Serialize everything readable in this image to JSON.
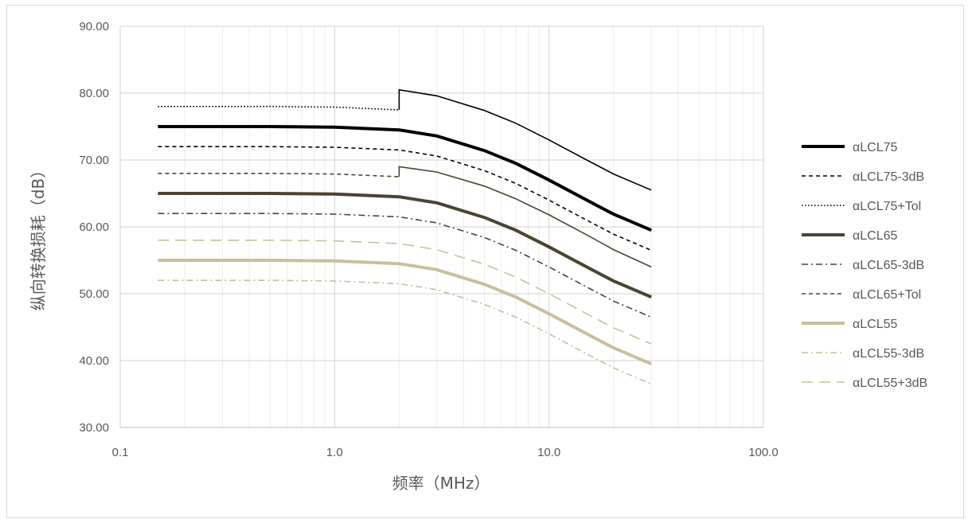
{
  "chart_data": {
    "type": "line",
    "xlabel": "频率（MHz）",
    "ylabel": "纵向转换损耗（dB）",
    "xscale": "log",
    "xlim": [
      0.1,
      100
    ],
    "ylim": [
      30,
      90
    ],
    "xticks": [
      "0.1",
      "1.0",
      "10.0",
      "100.0"
    ],
    "yticks": [
      "30.00",
      "40.00",
      "50.00",
      "60.00",
      "70.00",
      "80.00",
      "90.00"
    ],
    "grid": true,
    "legend_position": "right",
    "series": [
      {
        "name": "αLCL75",
        "color": "#000000",
        "style": "solid-thick",
        "x": [
          0.15,
          0.5,
          1,
          2,
          3,
          5,
          7,
          10,
          15,
          20,
          30
        ],
        "y": [
          75.0,
          75.0,
          74.9,
          74.5,
          73.6,
          71.4,
          69.5,
          67.0,
          64.0,
          61.9,
          59.5
        ]
      },
      {
        "name": "αLCL75-3dB",
        "color": "#000000",
        "style": "dashed",
        "x": [
          0.15,
          0.5,
          1,
          2,
          3,
          5,
          7,
          10,
          15,
          20,
          30
        ],
        "y": [
          72.0,
          72.0,
          71.9,
          71.5,
          70.6,
          68.4,
          66.5,
          64.0,
          61.0,
          58.9,
          56.5
        ]
      },
      {
        "name": "αLCL75+Tol",
        "color": "#000000",
        "style": "dotted-then-solid",
        "x": [
          0.15,
          0.5,
          1,
          1.99,
          2,
          3,
          5,
          7,
          10,
          15,
          20,
          30
        ],
        "y": [
          78.0,
          78.0,
          77.9,
          77.5,
          80.5,
          79.6,
          77.4,
          75.5,
          73.0,
          70.0,
          67.9,
          65.5
        ]
      },
      {
        "name": "αLCL65",
        "color": "#4a4431",
        "style": "solid-thick",
        "x": [
          0.15,
          0.5,
          1,
          2,
          3,
          5,
          7,
          10,
          15,
          20,
          30
        ],
        "y": [
          65.0,
          65.0,
          64.9,
          64.5,
          63.6,
          61.4,
          59.5,
          57.0,
          54.0,
          51.9,
          49.5
        ]
      },
      {
        "name": "αLCL65-3dB",
        "color": "#4a4431",
        "style": "dashdot",
        "x": [
          0.15,
          0.5,
          1,
          2,
          3,
          5,
          7,
          10,
          15,
          20,
          30
        ],
        "y": [
          62.0,
          62.0,
          61.9,
          61.5,
          60.6,
          58.4,
          56.5,
          54.0,
          51.0,
          48.9,
          46.5
        ]
      },
      {
        "name": "αLCL65+Tol",
        "color": "#4a4431",
        "style": "dashed-then-solid",
        "x": [
          0.15,
          0.5,
          1,
          1.99,
          2,
          3,
          5,
          7,
          10,
          15,
          20,
          30
        ],
        "y": [
          68.0,
          68.0,
          67.9,
          67.5,
          69.0,
          68.2,
          66.1,
          64.2,
          61.8,
          58.8,
          56.6,
          54.0
        ]
      },
      {
        "name": "αLCL55",
        "color": "#c9bf9d",
        "style": "solid-thick",
        "x": [
          0.15,
          0.5,
          1,
          2,
          3,
          5,
          7,
          10,
          15,
          20,
          30
        ],
        "y": [
          55.0,
          55.0,
          54.9,
          54.5,
          53.6,
          51.4,
          49.5,
          47.0,
          44.0,
          41.9,
          39.5
        ]
      },
      {
        "name": "αLCL55-3dB",
        "color": "#c9bf9d",
        "style": "dashdot",
        "x": [
          0.15,
          0.5,
          1,
          2,
          3,
          5,
          7,
          10,
          15,
          20,
          30
        ],
        "y": [
          52.0,
          52.0,
          51.9,
          51.5,
          50.6,
          48.4,
          46.5,
          44.0,
          41.0,
          38.9,
          36.5
        ]
      },
      {
        "name": "αLCL55+3dB",
        "color": "#c9bf9d",
        "style": "longdash",
        "x": [
          0.15,
          0.5,
          1,
          2,
          3,
          5,
          7,
          10,
          15,
          20,
          30
        ],
        "y": [
          58.0,
          58.0,
          57.9,
          57.5,
          56.6,
          54.4,
          52.5,
          50.0,
          47.0,
          44.9,
          42.5
        ]
      }
    ]
  }
}
